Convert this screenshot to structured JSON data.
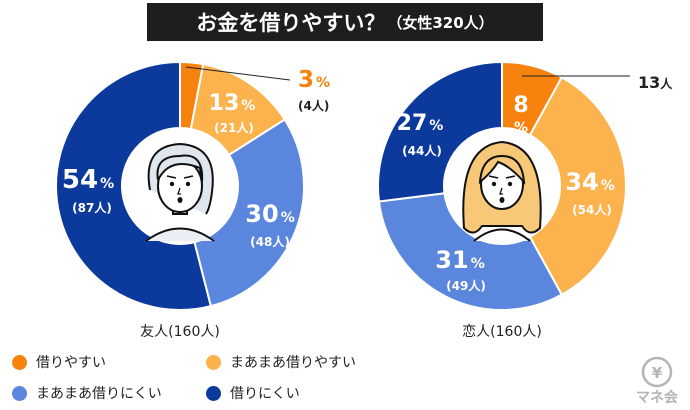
{
  "title": {
    "main": "お金を借りやすい？",
    "sub": "（女性320人）"
  },
  "colors": {
    "borrow_easy": "#F8820E",
    "somewhat_easy": "#FCB24D",
    "somewhat_hard": "#5B86DE",
    "hard": "#0C3A9C"
  },
  "legend": [
    {
      "key": "borrow_easy",
      "label": "借りやすい"
    },
    {
      "key": "somewhat_easy",
      "label": "まあまあ借りやすい"
    },
    {
      "key": "somewhat_hard",
      "label": "まあまあ借りにくい"
    },
    {
      "key": "hard",
      "label": "借りにくい"
    }
  ],
  "chart_data": [
    {
      "type": "pie",
      "caption": "友人(160人)",
      "slices": [
        {
          "key": "borrow_easy",
          "label": "借りやすい",
          "percent": 3,
          "count": 4,
          "count_text": "(4人)"
        },
        {
          "key": "somewhat_easy",
          "label": "まあまあ借りやすい",
          "percent": 13,
          "count": 21,
          "count_text": "(21人)"
        },
        {
          "key": "somewhat_hard",
          "label": "まあまあ借りにくい",
          "percent": 30,
          "count": 48,
          "count_text": "(48人)"
        },
        {
          "key": "hard",
          "label": "借りにくい",
          "percent": 54,
          "count": 87,
          "count_text": "(87人)"
        }
      ]
    },
    {
      "type": "pie",
      "caption": "恋人(160人)",
      "slices": [
        {
          "key": "borrow_easy",
          "label": "借りやすい",
          "percent": 8,
          "count": 13,
          "count_text": "13人"
        },
        {
          "key": "somewhat_easy",
          "label": "まあまあ借りやすい",
          "percent": 34,
          "count": 54,
          "count_text": "(54人)"
        },
        {
          "key": "somewhat_hard",
          "label": "まあまあ借りにくい",
          "percent": 31,
          "count": 49,
          "count_text": "(49人)"
        },
        {
          "key": "hard",
          "label": "借りにくい",
          "percent": 27,
          "count": 44,
          "count_text": "(44人)"
        }
      ]
    }
  ],
  "percent_sign": "%",
  "logo": {
    "text": "マネ会",
    "symbol": "¥"
  }
}
